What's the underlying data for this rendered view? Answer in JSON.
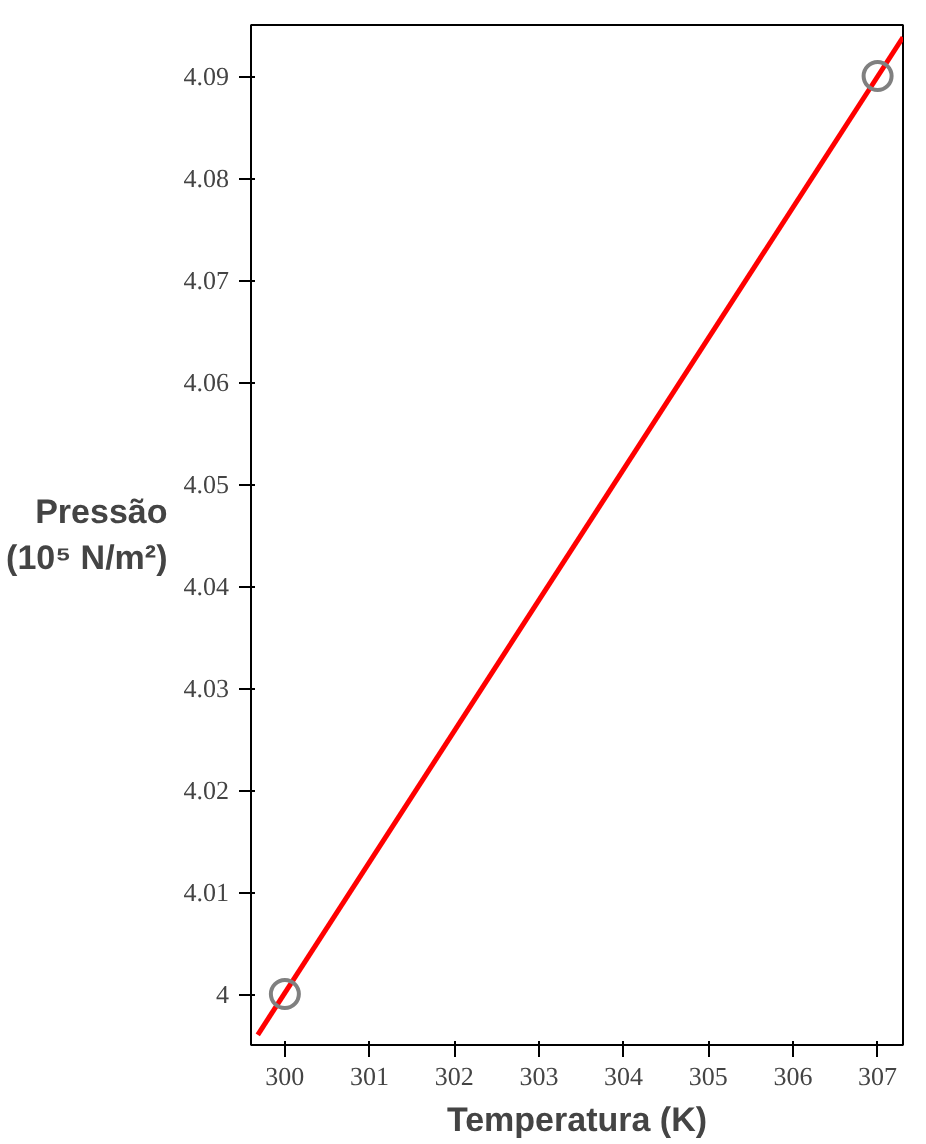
{
  "chart_data": {
    "type": "line",
    "xlabel": "Temperatura (K)",
    "ylabel": "Pressão\n(10⁵ N/m²)",
    "xlim": [
      299.6,
      307.3
    ],
    "ylim": [
      3.995,
      4.095
    ],
    "xticks": [
      300,
      301,
      302,
      303,
      304,
      305,
      306,
      307
    ],
    "yticks": [
      {
        "value": 4.0,
        "label": "4"
      },
      4.01,
      4.02,
      4.03,
      4.04,
      4.05,
      4.06,
      4.07,
      4.08,
      4.09
    ],
    "grid": false,
    "series": [
      {
        "color": "#ff0000",
        "x": [
          299.68,
          307.3
        ],
        "values": [
          3.996,
          4.0938
        ]
      },
      {
        "type": "scatter",
        "color": "#808080",
        "x": [
          300,
          307
        ],
        "values": [
          4.0,
          4.09
        ],
        "marker": "circle"
      }
    ]
  }
}
